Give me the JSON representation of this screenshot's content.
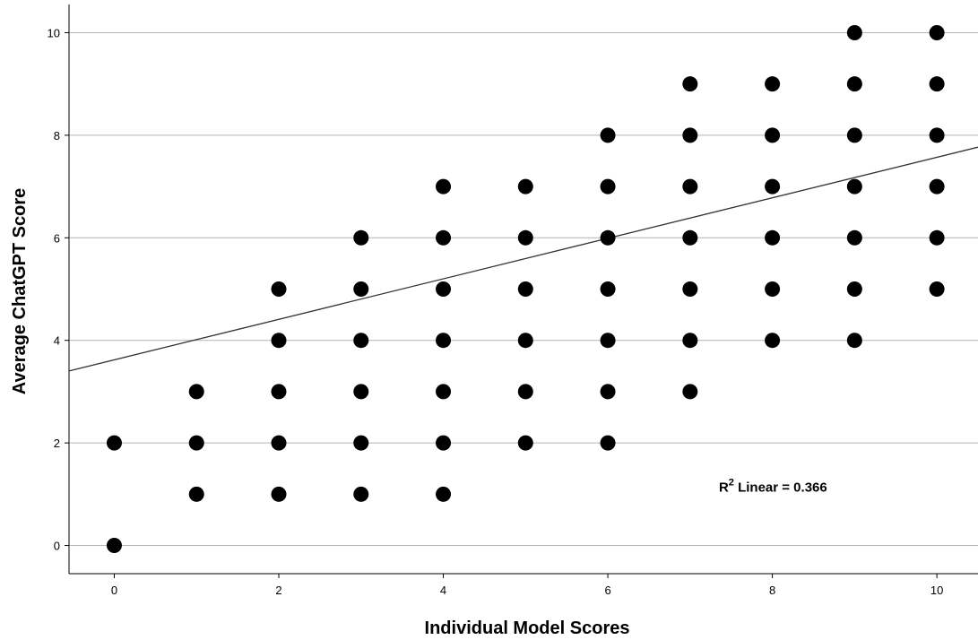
{
  "chart_data": {
    "type": "scatter",
    "title": "",
    "xlabel": "Individual Model Scores",
    "ylabel": "Average ChatGPT Score",
    "xlim": [
      -0.55,
      10.5
    ],
    "ylim": [
      -0.55,
      10.55
    ],
    "x_ticks": [
      "0",
      "2",
      "4",
      "6",
      "8",
      "10"
    ],
    "y_ticks": [
      "0",
      "2",
      "4",
      "6",
      "8",
      "10"
    ],
    "grid": "horizontal",
    "legend": "none",
    "point_color": "#000000",
    "line_color": "#333333",
    "grid_color": "#b4b4b4",
    "points": [
      [
        0,
        0
      ],
      [
        0,
        2
      ],
      [
        1,
        1
      ],
      [
        1,
        2
      ],
      [
        1,
        3
      ],
      [
        2,
        1
      ],
      [
        2,
        2
      ],
      [
        2,
        3
      ],
      [
        2,
        4
      ],
      [
        2,
        5
      ],
      [
        3,
        1
      ],
      [
        3,
        2
      ],
      [
        3,
        3
      ],
      [
        3,
        4
      ],
      [
        3,
        5
      ],
      [
        3,
        6
      ],
      [
        4,
        1
      ],
      [
        4,
        2
      ],
      [
        4,
        3
      ],
      [
        4,
        4
      ],
      [
        4,
        5
      ],
      [
        4,
        6
      ],
      [
        4,
        7
      ],
      [
        5,
        2
      ],
      [
        5,
        3
      ],
      [
        5,
        4
      ],
      [
        5,
        5
      ],
      [
        5,
        6
      ],
      [
        5,
        7
      ],
      [
        6,
        2
      ],
      [
        6,
        3
      ],
      [
        6,
        4
      ],
      [
        6,
        5
      ],
      [
        6,
        6
      ],
      [
        6,
        7
      ],
      [
        6,
        8
      ],
      [
        7,
        3
      ],
      [
        7,
        4
      ],
      [
        7,
        5
      ],
      [
        7,
        6
      ],
      [
        7,
        7
      ],
      [
        7,
        8
      ],
      [
        7,
        9
      ],
      [
        8,
        4
      ],
      [
        8,
        5
      ],
      [
        8,
        6
      ],
      [
        8,
        7
      ],
      [
        8,
        8
      ],
      [
        8,
        9
      ],
      [
        9,
        4
      ],
      [
        9,
        5
      ],
      [
        9,
        6
      ],
      [
        9,
        7
      ],
      [
        9,
        8
      ],
      [
        9,
        9
      ],
      [
        9,
        10
      ],
      [
        10,
        5
      ],
      [
        10,
        6
      ],
      [
        10,
        7
      ],
      [
        10,
        8
      ],
      [
        10,
        9
      ],
      [
        10,
        10
      ]
    ],
    "fit_line": {
      "type": "linear",
      "intercept": 3.62,
      "slope": 0.395
    },
    "annotation": {
      "r_symbol": "R",
      "superscript": "2",
      "text": " Linear = 0.366",
      "x": 7.35,
      "y": 1.05
    }
  }
}
